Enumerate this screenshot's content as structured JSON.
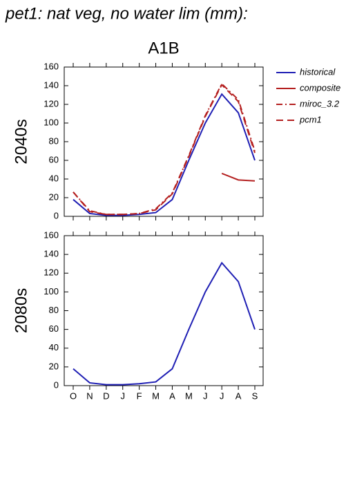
{
  "title": "pet1: nat veg, no water lim (mm):",
  "chart_data": [
    {
      "type": "line",
      "title": "A1B",
      "ylabel": "2040s",
      "ylim": [
        0,
        160
      ],
      "yticks": [
        0,
        20,
        40,
        60,
        80,
        100,
        120,
        140,
        160
      ],
      "legend": "outside right",
      "series": [
        {
          "name": "historical",
          "color": "#1f1fb4",
          "linestyle": "solid",
          "values": [
            18,
            3,
            1,
            1,
            2,
            4,
            18,
            60,
            100,
            131,
            111,
            60
          ]
        },
        {
          "name": "composite",
          "color": "#b41f1f",
          "linestyle": "solid",
          "values": [
            null,
            null,
            null,
            null,
            null,
            null,
            null,
            null,
            null,
            46,
            39,
            38
          ]
        },
        {
          "name": "miroc_3.2",
          "color": "#b41f1f",
          "linestyle": "dashdot",
          "values": [
            26,
            6,
            2,
            2,
            3,
            8,
            25,
            65,
            108,
            142,
            125,
            70
          ]
        },
        {
          "name": "pcm1",
          "color": "#b41f1f",
          "linestyle": "dashed",
          "values": [
            26,
            5,
            2,
            2,
            3,
            7,
            24,
            64,
            107,
            141,
            123,
            68
          ]
        }
      ]
    },
    {
      "type": "line",
      "ylabel": "2080s",
      "categories": [
        "O",
        "N",
        "D",
        "J",
        "F",
        "M",
        "A",
        "M",
        "J",
        "J",
        "A",
        "S"
      ],
      "ylim": [
        0,
        160
      ],
      "yticks": [
        0,
        20,
        40,
        60,
        80,
        100,
        120,
        140,
        160
      ],
      "series": [
        {
          "name": "historical",
          "color": "#1f1fb4",
          "linestyle": "solid",
          "values": [
            18,
            3,
            1,
            1,
            2,
            4,
            18,
            60,
            100,
            131,
            111,
            60
          ]
        }
      ]
    }
  ]
}
